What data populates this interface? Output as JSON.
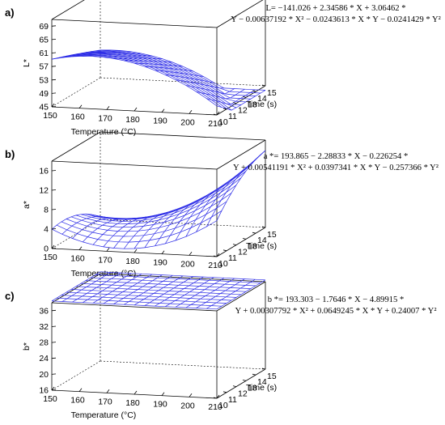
{
  "panels": [
    {
      "label": "a)",
      "equation": [
        "L= −141.026 + 2.34586 * X + 3.06462 *",
        "Y − 0.00637192 * X² − 0.0243613 * X * Y − 0.0241429 * Y²"
      ]
    },
    {
      "label": "b)",
      "equation": [
        "a *=  193.865 − 2.28833 * X − 0.226254 *",
        "Y + 0.00541191 * X² + 0.0397341 * X * Y − 0.257366 * Y²"
      ]
    },
    {
      "label": "c)",
      "equation": [
        "b *=  193.303 − 1.7646 * X − 4.89915 *",
        "Y + 0.00307792 * X² + 0.0649245 * X * Y + 0.24007 * Y²"
      ]
    }
  ],
  "colors": {
    "surface": "#2a2ae6",
    "axis": "#000000"
  },
  "chart_data": [
    {
      "type": "surface",
      "zlabel": "L*",
      "xlabel": "Temperature (°C)",
      "ylabel": "Time (s)",
      "xticks": [
        "150",
        "160",
        "170",
        "180",
        "190",
        "200",
        "210"
      ],
      "yticks": [
        "10",
        "11",
        "12",
        "13",
        "14",
        "15"
      ],
      "zticks": [
        "45",
        "49",
        "53",
        "57",
        "61",
        "65",
        "69"
      ],
      "xlim": [
        150,
        210
      ],
      "ylim": [
        10,
        15
      ],
      "zlim": [
        45,
        71
      ],
      "coefficients": {
        "const": -141.026,
        "x": 2.34586,
        "y": 3.06462,
        "x2": -0.00637192,
        "xy": -0.0243613,
        "y2": -0.0241429
      },
      "grid": "box"
    },
    {
      "type": "surface",
      "zlabel": "a*",
      "xlabel": "Temperature (°C)",
      "ylabel": "Time (s)",
      "xticks": [
        "150",
        "160",
        "170",
        "180",
        "190",
        "200",
        "210"
      ],
      "yticks": [
        "10",
        "11",
        "12",
        "13",
        "14",
        "15"
      ],
      "zticks": [
        "0",
        "4",
        "8",
        "12",
        "16"
      ],
      "xlim": [
        150,
        210
      ],
      "ylim": [
        10,
        15
      ],
      "zlim": [
        0,
        18
      ],
      "coefficients": {
        "const": 193.865,
        "x": -2.28833,
        "y": -0.226254,
        "x2": 0.00541191,
        "xy": 0.0397341,
        "y2": -0.257366
      },
      "grid": "box"
    },
    {
      "type": "surface",
      "zlabel": "b*",
      "xlabel": "Temperature (°C)",
      "ylabel": "Time (s)",
      "xticks": [
        "150",
        "160",
        "170",
        "180",
        "190",
        "200",
        "210"
      ],
      "yticks": [
        "10",
        "11",
        "12",
        "13",
        "14",
        "15"
      ],
      "zticks": [
        "16",
        "20",
        "24",
        "28",
        "32",
        "36"
      ],
      "xlim": [
        150,
        210
      ],
      "ylim": [
        10,
        15
      ],
      "zlim": [
        16,
        38
      ],
      "coefficients": {
        "const": 193.303,
        "x": -1.7646,
        "y": -4.89915,
        "x2": 0.00307792,
        "xy": 0.0649245,
        "y2": 0.24007
      },
      "grid": "box"
    }
  ]
}
